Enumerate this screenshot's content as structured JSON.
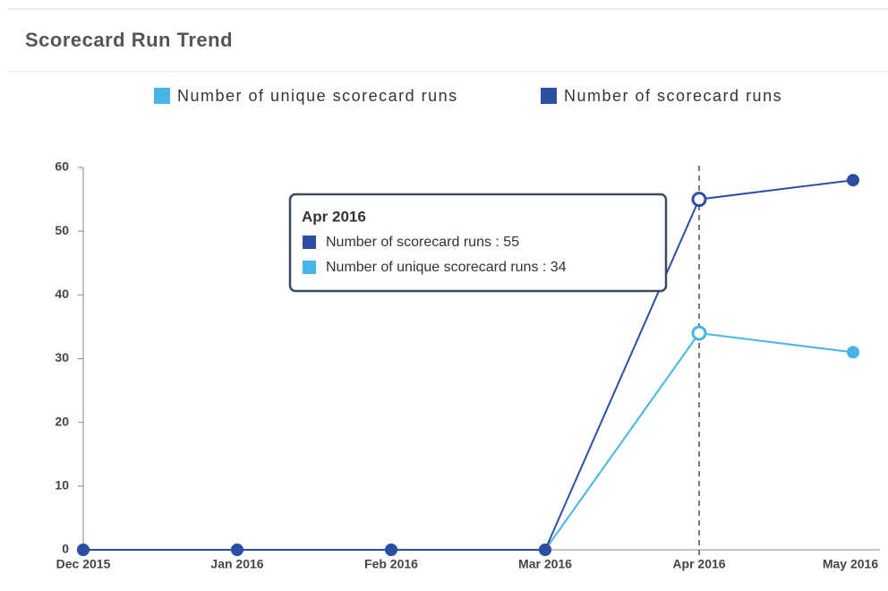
{
  "panel": {
    "title": "Scorecard Run Trend"
  },
  "chart_data": {
    "type": "line",
    "categories": [
      "Dec 2015",
      "Jan 2016",
      "Feb 2016",
      "Mar 2016",
      "Apr 2016",
      "May 2016"
    ],
    "series": [
      {
        "name": "Number of unique scorecard runs",
        "color": "#45b4e6",
        "values": [
          0,
          0,
          0,
          0,
          34,
          31
        ]
      },
      {
        "name": "Number of scorecard runs",
        "color": "#2d4fa3",
        "values": [
          0,
          0,
          0,
          0,
          55,
          58
        ]
      }
    ],
    "ylim": [
      0,
      60
    ],
    "yticks": [
      0,
      10,
      20,
      30,
      40,
      50,
      60
    ],
    "legend": "top",
    "grid": false,
    "tooltip": {
      "title": "Apr 2016",
      "items": [
        "Number of scorecard runs : 55",
        "Number of unique scorecard runs : 34"
      ]
    }
  }
}
